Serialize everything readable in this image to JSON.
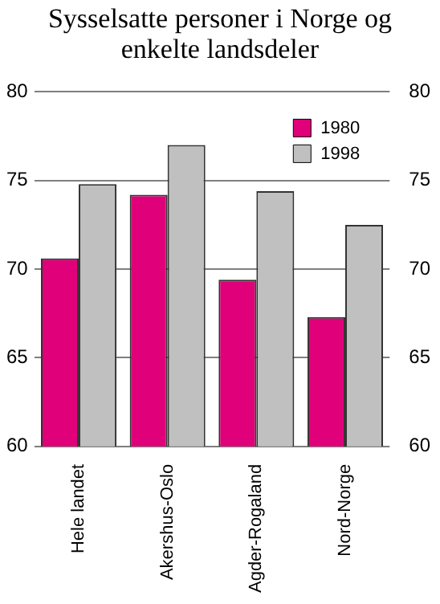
{
  "chart_data": {
    "type": "bar",
    "title": "Sysselsatte personer i Norge og enkelte landsdeler",
    "categories": [
      "Hele landet",
      "Akershus-Oslo",
      "Agder-Rogaland",
      "Nord-Norge"
    ],
    "series": [
      {
        "name": "1980",
        "color": "#e0007a",
        "values": [
          70.6,
          74.2,
          69.4,
          67.3
        ]
      },
      {
        "name": "1998",
        "color": "#c0c0c0",
        "values": [
          74.8,
          77.0,
          74.4,
          72.5
        ]
      }
    ],
    "ylim": [
      60,
      80
    ],
    "yticks": [
      60,
      65,
      70,
      75,
      80
    ],
    "y2lim": [
      60,
      80
    ],
    "y2ticks": [
      60,
      65,
      70,
      75,
      80
    ],
    "grid": "y",
    "legend": "top right"
  }
}
